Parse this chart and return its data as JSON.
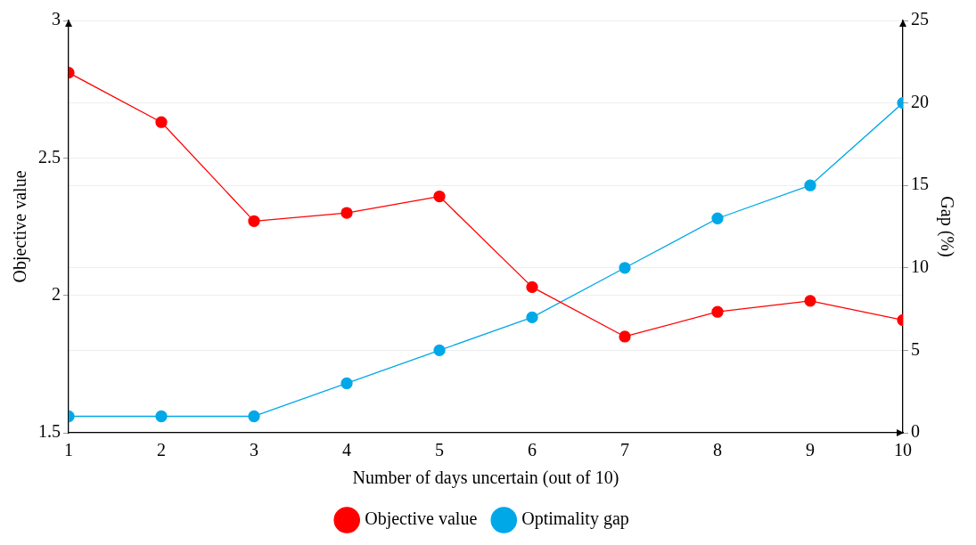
{
  "chart_data": {
    "type": "line",
    "xlabel": "Number of days uncertain (out of 10)",
    "ylabel": "Objective value",
    "y2label": "Gap (%)",
    "x": [
      1,
      2,
      3,
      4,
      5,
      6,
      7,
      8,
      9,
      10
    ],
    "series": [
      {
        "name": "Objective value",
        "color": "#ff0000",
        "values": [
          2.81,
          2.63,
          2.27,
          2.3,
          2.36,
          2.03,
          1.85,
          1.94,
          1.98,
          1.91
        ]
      },
      {
        "name": "Optimality gap",
        "color": "#00a8e8",
        "axis": "y2",
        "values": [
          1,
          1,
          1,
          3,
          5,
          7,
          10,
          13,
          15,
          20
        ]
      }
    ],
    "xlim": [
      1,
      10
    ],
    "xticks": [
      1,
      2,
      3,
      4,
      5,
      6,
      7,
      8,
      9,
      10
    ],
    "ylim": [
      1.5,
      3
    ],
    "yticks": [
      1.5,
      2,
      2.5,
      3
    ],
    "y2lim": [
      0,
      25
    ],
    "y2ticks": [
      0,
      5,
      10,
      15,
      20,
      25
    ],
    "grid": "y",
    "legend": "bottom",
    "marker": "circle",
    "line_style": "solid"
  }
}
